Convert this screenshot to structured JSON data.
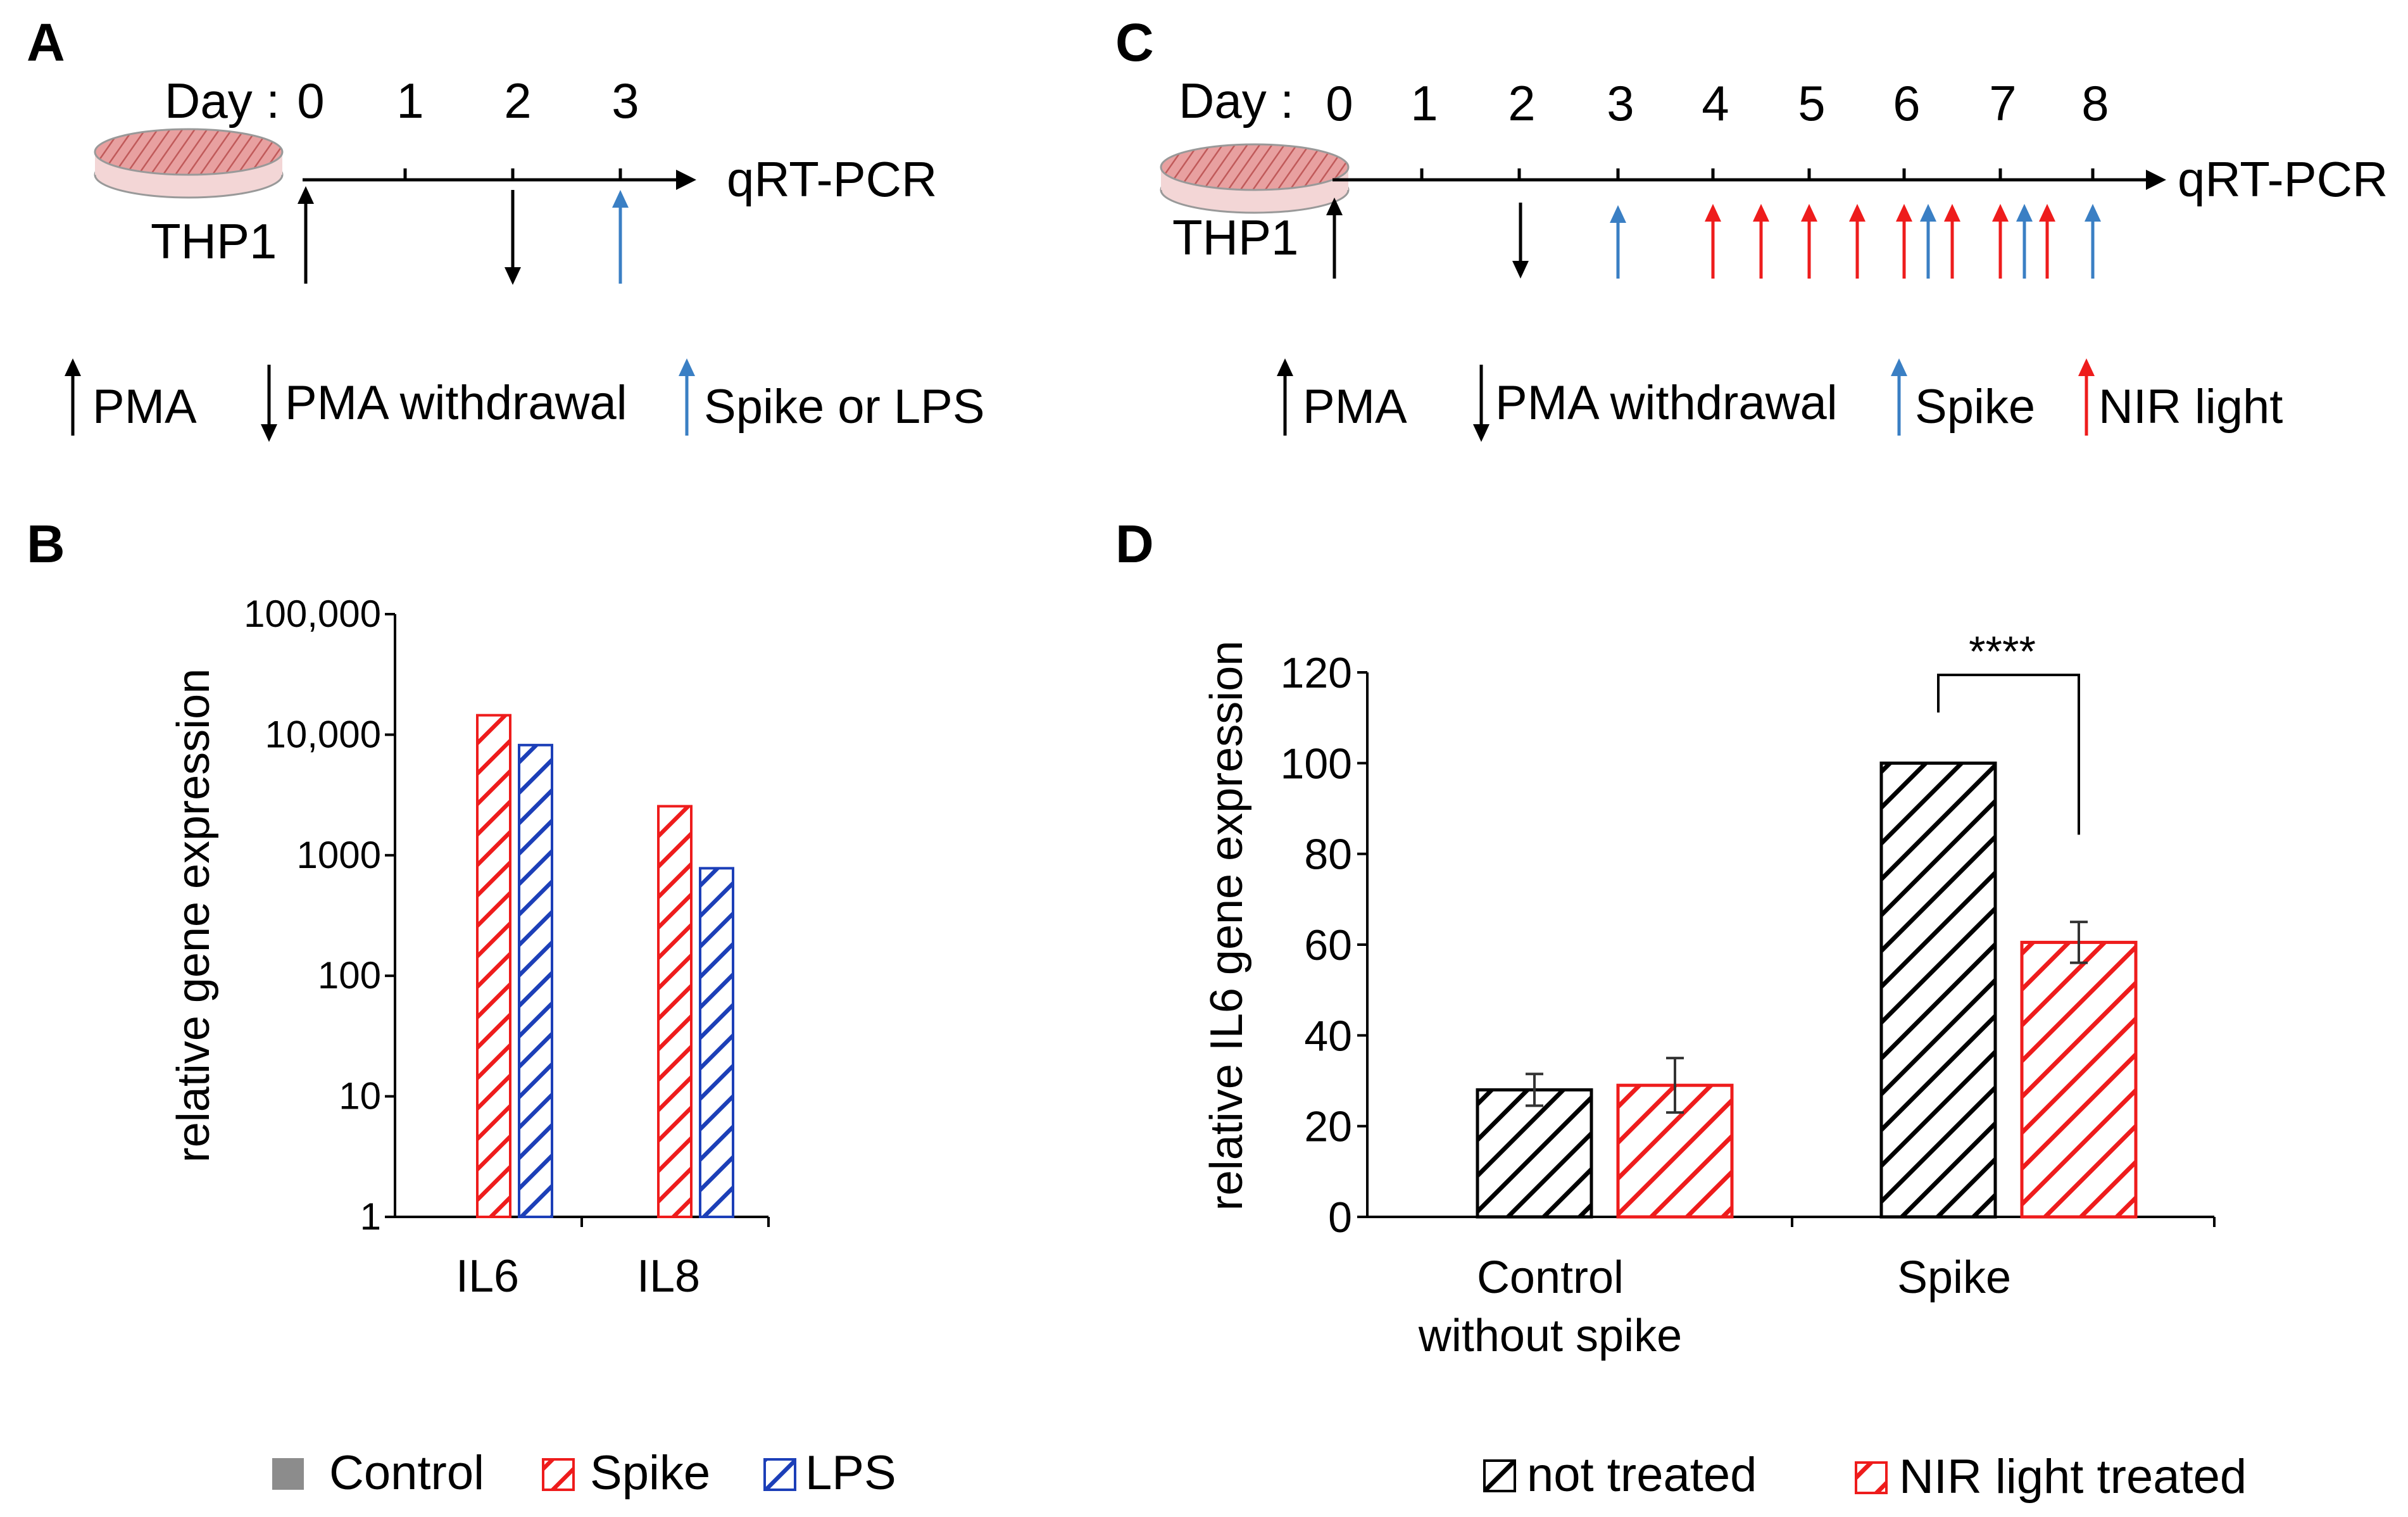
{
  "panels": {
    "A": {
      "label": "A",
      "day_label": "Day :",
      "days": [
        "0",
        "1",
        "2",
        "3"
      ],
      "endpoint": "qRT-PCR",
      "cell_line": "THP1",
      "legend": {
        "pma": "PMA",
        "withdrawal": "PMA withdrawal",
        "treatment": "Spike or LPS"
      }
    },
    "C": {
      "label": "C",
      "day_label": "Day :",
      "days": [
        "0",
        "1",
        "2",
        "3",
        "4",
        "5",
        "6",
        "7",
        "8"
      ],
      "endpoint": "qRT-PCR",
      "cell_line": "THP1",
      "legend": {
        "pma": "PMA",
        "withdrawal": "PMA withdrawal",
        "spike": "Spike",
        "nir": "NIR light"
      }
    },
    "B": {
      "label": "B"
    },
    "D": {
      "label": "D"
    }
  },
  "colors": {
    "black": "#000000",
    "red": "#ee1c1c",
    "blue": "#1c3fb8",
    "arrow_blue": "#3a7fc4",
    "control_gray": "#8c8c8c"
  },
  "chart_data": [
    {
      "id": "B",
      "type": "bar",
      "yscale": "log",
      "ylabel": "relative gene expression",
      "categories": [
        "IL6",
        "IL8"
      ],
      "yticks": [
        "1",
        "10",
        "100",
        "1000",
        "10,000",
        "100,000"
      ],
      "ylim": [
        1,
        100000
      ],
      "series": [
        {
          "name": "Control",
          "values": [
            1,
            1
          ]
        },
        {
          "name": "Spike",
          "values": [
            14500,
            2550
          ]
        },
        {
          "name": "LPS",
          "values": [
            8200,
            780
          ]
        }
      ],
      "legend": [
        "Control",
        "Spike",
        "LPS"
      ]
    },
    {
      "id": "D",
      "type": "bar",
      "ylabel": "relative IL6 gene expression",
      "categories": [
        "Control\nwithout spike",
        "Spike"
      ],
      "category_lines": [
        [
          "Control",
          "without spike"
        ],
        [
          "Spike"
        ]
      ],
      "yticks": [
        "0",
        "20",
        "40",
        "60",
        "80",
        "100",
        "120"
      ],
      "ylim": [
        0,
        120
      ],
      "series": [
        {
          "name": "not treated",
          "values": [
            28,
            100
          ],
          "errors": [
            3.5,
            0
          ]
        },
        {
          "name": "NIR light treated",
          "values": [
            29,
            60.5
          ],
          "errors": [
            6,
            4.5
          ]
        }
      ],
      "significance": "****",
      "legend": [
        "not treated",
        "NIR light treated"
      ]
    }
  ]
}
